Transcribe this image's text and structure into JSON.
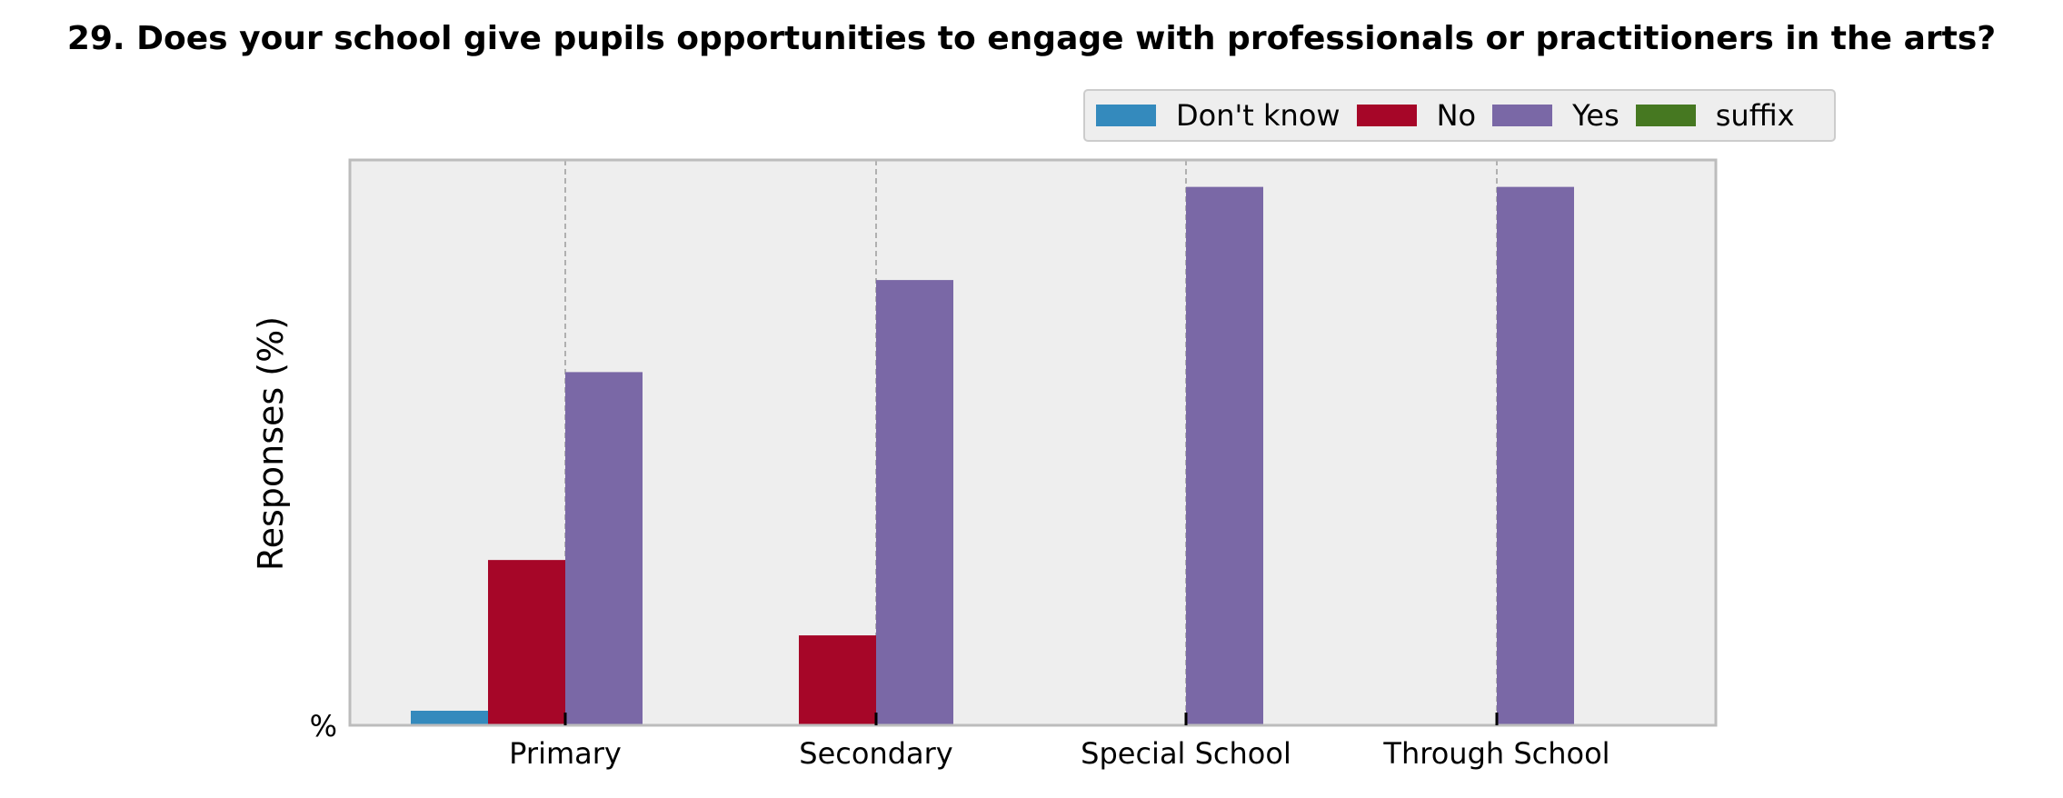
{
  "chart_data": {
    "type": "bar",
    "title": "29. Does your school give pupils opportunities to engage with professionals or practitioners in the arts?",
    "ylabel": "Responses (%)",
    "xlabel": "",
    "categories": [
      "Primary",
      "Secondary",
      "Special School",
      "Through School"
    ],
    "series": [
      {
        "name": "Don't know",
        "color": "#348abd",
        "values": [
          2.7,
          0,
          0,
          0
        ]
      },
      {
        "name": "No",
        "color": "#a60628",
        "values": [
          30.7,
          16.7,
          0,
          0
        ]
      },
      {
        "name": "Yes",
        "color": "#7a68a6",
        "values": [
          65.6,
          82.7,
          100,
          100
        ]
      },
      {
        "name": "suffix",
        "color": "#467821",
        "values": [
          0,
          0,
          0,
          0
        ]
      }
    ],
    "ylim": [
      0,
      105
    ],
    "y_tick_labels": [
      "%"
    ],
    "grid": true,
    "legend_position": "top-right",
    "background_color": "#eeeeee"
  }
}
